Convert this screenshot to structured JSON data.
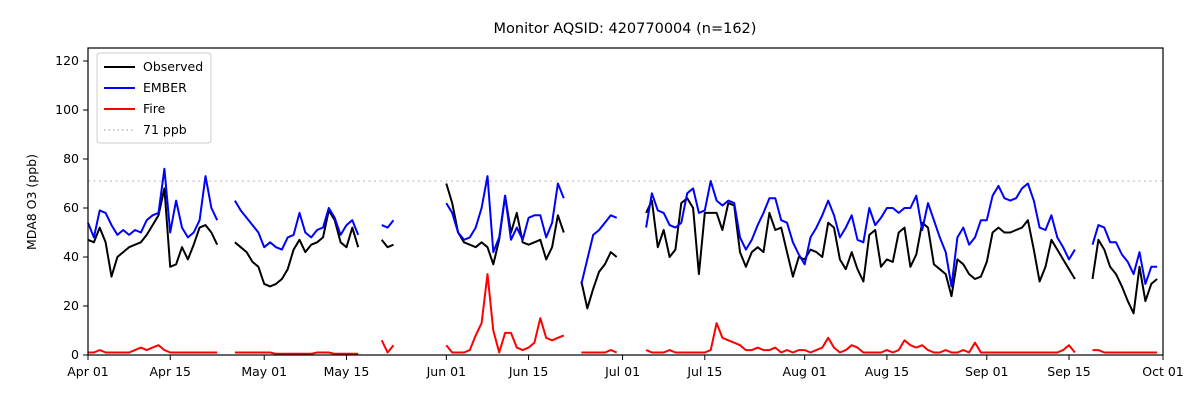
{
  "figure": {
    "title": "Monitor AQSID: 420770004 (n=162)",
    "ylabel": "MDA8 O3 (ppb)",
    "background": "#ffffff"
  },
  "legend": {
    "items": [
      {
        "label": "Observed",
        "color": "#000000",
        "style": "solid"
      },
      {
        "label": "EMBER",
        "color": "#0000ff",
        "style": "solid"
      },
      {
        "label": "Fire",
        "color": "#ff0000",
        "style": "solid"
      },
      {
        "label": "71 ppb",
        "color": "#c9c9c9",
        "style": "dotted"
      }
    ]
  },
  "chart_data": {
    "type": "line",
    "title": "Monitor AQSID: 420770004 (n=162)",
    "xlabel": "",
    "ylabel": "MDA8 O3 (ppb)",
    "n_observations": 162,
    "ylim": [
      0,
      125.3
    ],
    "yticks": [
      0,
      20,
      40,
      60,
      80,
      100,
      120
    ],
    "xlim_days": [
      0,
      183
    ],
    "xticks": [
      {
        "label": "Apr 01",
        "day": 0
      },
      {
        "label": "Apr 15",
        "day": 14
      },
      {
        "label": "May 01",
        "day": 30
      },
      {
        "label": "May 15",
        "day": 44
      },
      {
        "label": "Jun 01",
        "day": 61
      },
      {
        "label": "Jun 15",
        "day": 75
      },
      {
        "label": "Jul 01",
        "day": 91
      },
      {
        "label": "Jul 15",
        "day": 105
      },
      {
        "label": "Aug 01",
        "day": 122
      },
      {
        "label": "Aug 15",
        "day": 136
      },
      {
        "label": "Sep 01",
        "day": 153
      },
      {
        "label": "Sep 15",
        "day": 167
      },
      {
        "label": "Oct 01",
        "day": 183
      }
    ],
    "x_months": [
      {
        "name": "Apr",
        "days": 30
      },
      {
        "name": "May",
        "days": 31
      },
      {
        "name": "Jun",
        "days": 30
      },
      {
        "name": "Jul",
        "days": 31
      },
      {
        "name": "Aug",
        "days": 31
      },
      {
        "name": "Sep",
        "days": 30
      }
    ],
    "threshold": {
      "label": "71 ppb",
      "value": 71,
      "color": "#c9c9c9",
      "linestyle": "dotted"
    },
    "grid": false,
    "legend_position": "upper left",
    "series": [
      {
        "name": "Observed",
        "color": "#000000",
        "values": [
          47,
          46,
          52,
          46,
          32,
          40,
          42,
          44,
          45,
          46,
          49,
          53,
          57,
          68,
          36,
          37,
          44,
          39,
          45,
          52,
          53,
          50,
          45,
          null,
          null,
          46,
          44,
          42,
          38,
          36,
          29,
          28,
          29,
          31,
          35,
          43,
          47,
          42,
          45,
          46,
          48,
          59,
          55,
          46,
          44,
          52,
          44,
          null,
          null,
          null,
          47,
          44,
          45,
          null,
          null,
          null,
          null,
          null,
          null,
          null,
          null,
          70,
          62,
          50,
          46,
          45,
          44,
          46,
          44,
          37,
          47,
          65,
          50,
          58,
          46,
          45,
          46,
          47,
          39,
          44,
          57,
          50,
          null,
          null,
          30,
          19,
          27,
          34,
          37,
          42,
          40,
          null,
          null,
          null,
          null,
          58,
          63,
          44,
          51,
          40,
          43,
          62,
          64,
          60,
          33,
          58,
          58,
          58,
          51,
          62,
          61,
          42,
          36,
          42,
          44,
          42,
          58,
          51,
          52,
          42,
          32,
          40,
          39,
          43,
          42,
          40,
          54,
          52,
          39,
          35,
          42,
          35,
          30,
          49,
          51,
          36,
          39,
          38,
          50,
          52,
          36,
          41,
          54,
          52,
          37,
          35,
          33,
          24,
          39,
          37,
          33,
          31,
          32,
          38,
          50,
          52,
          50,
          50,
          51,
          52,
          55,
          43,
          30,
          36,
          47,
          43,
          39,
          35,
          31,
          null,
          null,
          31,
          47,
          43,
          36,
          33,
          28,
          22,
          17,
          36,
          22,
          29,
          31
        ]
      },
      {
        "name": "EMBER",
        "color": "#0000ff",
        "values": [
          54,
          48,
          59,
          58,
          53,
          49,
          51,
          49,
          51,
          50,
          55,
          57,
          58,
          76,
          50,
          63,
          52,
          48,
          50,
          55,
          73,
          60,
          55,
          null,
          null,
          63,
          59,
          56,
          53,
          50,
          44,
          46,
          44,
          43,
          48,
          49,
          58,
          50,
          48,
          51,
          52,
          60,
          56,
          49,
          53,
          55,
          49,
          null,
          null,
          null,
          53,
          52,
          55,
          null,
          null,
          null,
          null,
          null,
          null,
          null,
          null,
          62,
          58,
          50,
          47,
          48,
          52,
          60,
          73,
          42,
          48,
          65,
          47,
          52,
          47,
          56,
          57,
          57,
          48,
          54,
          70,
          64,
          null,
          null,
          29,
          39,
          49,
          51,
          54,
          57,
          56,
          null,
          null,
          null,
          null,
          52,
          66,
          59,
          58,
          53,
          52,
          54,
          66,
          68,
          58,
          59,
          71,
          63,
          61,
          63,
          62,
          48,
          43,
          47,
          53,
          58,
          64,
          64,
          55,
          54,
          46,
          41,
          37,
          48,
          52,
          57,
          63,
          57,
          48,
          52,
          57,
          47,
          46,
          60,
          53,
          56,
          60,
          60,
          58,
          60,
          60,
          65,
          51,
          62,
          55,
          48,
          42,
          28,
          48,
          52,
          45,
          48,
          55,
          55,
          65,
          69,
          64,
          63,
          64,
          68,
          70,
          63,
          52,
          51,
          57,
          48,
          44,
          39,
          43,
          null,
          null,
          45,
          53,
          52,
          46,
          46,
          41,
          38,
          33,
          42,
          29,
          36,
          36
        ]
      },
      {
        "name": "Fire",
        "color": "#ff0000",
        "values": [
          1,
          1,
          2,
          1,
          1,
          1,
          1,
          1,
          2,
          3,
          2,
          3,
          4,
          2,
          1,
          1,
          1,
          1,
          1,
          1,
          1,
          1,
          1,
          null,
          null,
          1,
          1,
          1,
          1,
          1,
          1,
          1,
          0.5,
          0.5,
          0.5,
          0.5,
          0.5,
          0.5,
          0.5,
          1,
          1,
          1,
          0.5,
          0.5,
          0.5,
          0.5,
          0.5,
          null,
          null,
          null,
          6,
          1,
          4,
          null,
          null,
          null,
          null,
          null,
          null,
          null,
          null,
          4,
          1,
          1,
          1,
          2,
          8,
          13,
          33,
          10,
          1,
          9,
          9,
          3,
          2,
          3,
          5,
          15,
          7,
          6,
          7,
          8,
          null,
          null,
          1,
          1,
          1,
          1,
          1,
          2,
          1,
          null,
          null,
          null,
          null,
          2,
          1,
          1,
          1,
          2,
          1,
          1,
          1,
          1,
          1,
          1,
          2,
          13,
          7,
          6,
          5,
          4,
          2,
          2,
          3,
          2,
          2,
          3,
          1,
          2,
          1,
          2,
          2,
          1,
          2,
          3,
          7,
          3,
          1,
          2,
          4,
          3,
          1,
          1,
          1,
          1,
          2,
          1,
          2,
          6,
          4,
          3,
          4,
          2,
          1,
          1,
          2,
          1,
          1,
          2,
          1,
          5,
          1,
          1,
          1,
          1,
          1,
          1,
          1,
          1,
          1,
          1,
          1,
          1,
          1,
          1,
          2,
          4,
          1,
          null,
          null,
          2,
          2,
          1,
          1,
          1,
          1,
          1,
          1,
          1,
          1,
          1,
          1
        ]
      }
    ]
  }
}
